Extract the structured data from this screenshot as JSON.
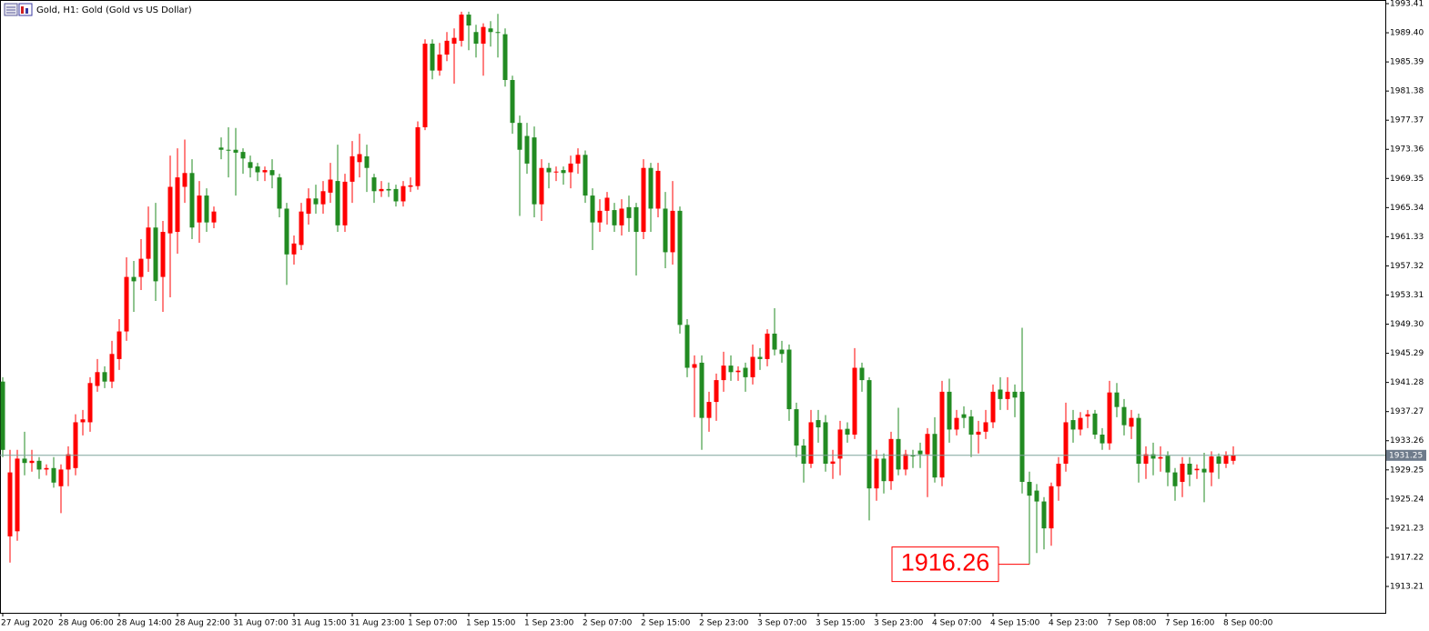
{
  "chart_data": {
    "type": "candlestick",
    "title": "Gold, H1:  Gold (Gold vs US Dollar)",
    "categories": [
      "27 Aug 2020",
      null,
      null,
      null,
      null,
      null,
      null,
      null,
      "28 Aug 06:00",
      null,
      null,
      null,
      null,
      null,
      null,
      null,
      "28 Aug 14:00",
      null,
      null,
      null,
      null,
      null,
      null,
      null,
      "28 Aug 22:00",
      null,
      null,
      null,
      null,
      null,
      null,
      null,
      "31 Aug 07:00",
      null,
      null,
      null,
      null,
      null,
      null,
      null,
      "31 Aug 15:00",
      null,
      null,
      null,
      null,
      null,
      null,
      null,
      "31 Aug 23:00",
      null,
      null,
      null,
      null,
      null,
      null,
      null,
      "1 Sep 07:00",
      null,
      null,
      null,
      null,
      null,
      null,
      null,
      "1 Sep 15:00",
      null,
      null,
      null,
      null,
      null,
      null,
      null,
      "1 Sep 23:00",
      null,
      null,
      null,
      null,
      null,
      null,
      null,
      "2 Sep 07:00",
      null,
      null,
      null,
      null,
      null,
      null,
      null,
      "2 Sep 15:00",
      null,
      null,
      null,
      null,
      null,
      null,
      null,
      "2 Sep 23:00",
      null,
      null,
      null,
      null,
      null,
      null,
      null,
      "3 Sep 07:00",
      null,
      null,
      null,
      null,
      null,
      null,
      null,
      "3 Sep 15:00",
      null,
      null,
      null,
      null,
      null,
      null,
      null,
      "3 Sep 23:00",
      null,
      null,
      null,
      null,
      null,
      null,
      null,
      "4 Sep 07:00",
      null,
      null,
      null,
      null,
      null,
      null,
      null,
      "4 Sep 15:00",
      null,
      null,
      null,
      null,
      null,
      null,
      null,
      "4 Sep 23:00",
      null,
      null,
      null,
      null,
      null,
      null,
      null,
      "7 Sep 08:00",
      null,
      null,
      null,
      null,
      null,
      null,
      null,
      "7 Sep 16:00",
      null,
      null,
      null,
      null,
      null,
      null,
      null,
      "8 Sep 00:00",
      null
    ],
    "open": [
      1941.4,
      1920.1,
      1920.8,
      1930.8,
      1930.2,
      1930.5,
      1929.3,
      1929.5,
      1927.0,
      1929.3,
      1929.5,
      1935.8,
      1935.8,
      1940.8,
      1942.7,
      1941.4,
      1944.5,
      1948.3,
      1955.8,
      1955.8,
      1958.3,
      1962.6,
      1955.8,
      1961.8,
      1962,
      1968.2,
      1970.1,
      1963.3,
      1967,
      1963.3,
      1973.6,
      1973.3,
      1973.3,
      1973,
      1971.6,
      1971,
      1970.2,
      1970.5,
      1969.5,
      1965.2,
      1958.9,
      1960.2,
      1964.5,
      1966.6,
      1965.8,
      1967.4,
      1969,
      1962.9,
      1968.9,
      1971.6,
      1972.4,
      1969.5,
      1967.6,
      1967.9,
      1967.9,
      1966.2,
      1968.2,
      1968.3,
      1976.4,
      1987.9,
      1984.2,
      1986.4,
      1987.9,
      1988.3,
      1991.9,
      1989.5,
      1987.9,
      1990,
      1989.5,
      1989.2,
      1982.9,
      1977,
      1975.2,
      1975,
      1965.8,
      1970.8,
      1970.2,
      1970.5,
      1970.2,
      1971.4,
      1972.6,
      1967,
      1963.3,
      1964.9,
      1965,
      1962.9,
      1965.4,
      1965.4,
      1962,
      1970.8,
      1965.2,
      1965.2,
      1959.2,
      1964.9,
      1949.2,
      1943.3,
      1944,
      1936.4,
      1938.6,
      1941.6,
      1943.6,
      1942.7,
      1943.3,
      1942,
      1944.8,
      1944.5,
      1948,
      1945.8,
      1945.8,
      1937.6,
      1932.6,
      1930.1,
      1936.1,
      1935.8,
      1930.1,
      1930.8,
      1934.9,
      1934.1,
      1943.3,
      1941.6,
      1926.7,
      1930.8,
      1927.7,
      1933.5,
      1929.3,
      1931.3,
      1931.9,
      1931.4,
      1934.2,
      1928.2,
      1940,
      1934.8,
      1936.9,
      1936.6,
      1934.1,
      1934.5,
      1935.8,
      1940.3,
      1939,
      1940,
      1940,
      1927.6,
      1926.4,
      1924.9,
      1921.2,
      1927,
      1930.1,
      1936.1,
      1934.8,
      1936.6,
      1937,
      1934.1,
      1932.9,
      1939.9,
      1937.9,
      1935.2,
      1936.4,
      1930.1,
      1931.4,
      1930.8,
      1931.2,
      1928.9,
      1927.6,
      1930.1,
      1929.2,
      1929.4,
      1928.9,
      1931.1,
      1930.1,
      1930.5
    ],
    "high": [
      1942,
      1932,
      1932,
      1934.5,
      1932,
      1931,
      1930,
      1931,
      1930,
      1932.5,
      1936.9,
      1937.5,
      1942,
      1944.5,
      1943.5,
      1947,
      1950,
      1958.5,
      1958,
      1961,
      1965.5,
      1966,
      1963.5,
      1972.5,
      1973.5,
      1974.7,
      1972,
      1969,
      1968,
      1965.5,
      1975,
      1976.4,
      1976.3,
      1973.5,
      1972.5,
      1971.5,
      1971,
      1972,
      1970,
      1966,
      1961.5,
      1966,
      1968,
      1968.5,
      1969,
      1971.5,
      1974,
      1970,
      1974.5,
      1975.5,
      1974,
      1970,
      1969,
      1968.8,
      1968.5,
      1969,
      1969.5,
      1977.2,
      1988.5,
      1988.5,
      1988,
      1989.5,
      1990,
      1992.3,
      1992.3,
      1990.5,
      1990.7,
      1991,
      1992,
      1990,
      1983.5,
      1978,
      1977,
      1976.5,
      1972,
      1971.5,
      1971,
      1971,
      1972.5,
      1973.5,
      1973.2,
      1968,
      1966.5,
      1967.5,
      1966,
      1966.5,
      1967,
      1966,
      1972,
      1971.5,
      1971.5,
      1967.5,
      1969,
      1965.5,
      1950,
      1945,
      1945,
      1940,
      1942.5,
      1945.5,
      1945,
      1943.5,
      1944,
      1946.5,
      1946,
      1948.6,
      1951.5,
      1947,
      1946.5,
      1938.5,
      1933.5,
      1937.5,
      1937.5,
      1936.8,
      1932,
      1936,
      1935.8,
      1946,
      1944,
      1942,
      1932,
      1931.5,
      1934.5,
      1937.8,
      1932,
      1932,
      1933,
      1935,
      1936.5,
      1941.5,
      1941.8,
      1937.5,
      1938,
      1937.5,
      1936,
      1937.5,
      1941,
      1942,
      1942,
      1941,
      1948.8,
      1929,
      1927.3,
      1925.5,
      1927.5,
      1931,
      1938.5,
      1937.5,
      1937.2,
      1937.5,
      1937.5,
      1935,
      1941.5,
      1941.2,
      1939,
      1937.5,
      1937,
      1932.5,
      1933,
      1932.5,
      1931.8,
      1929.5,
      1931,
      1931,
      1930,
      1931.6,
      1931.8,
      1931.5,
      1931.8,
      1932.5
    ],
    "low": [
      1931,
      1916.5,
      1919.5,
      1928.5,
      1929,
      1928,
      1928.5,
      1926.8,
      1923.3,
      1927,
      1928.5,
      1934,
      1934.5,
      1940,
      1940.5,
      1940.5,
      1943,
      1947,
      1951,
      1954,
      1956.5,
      1952.5,
      1951,
      1953,
      1959,
      1966,
      1961,
      1960.5,
      1962,
      1962.5,
      1972,
      1969.5,
      1967,
      1970,
      1969.5,
      1969,
      1969,
      1968,
      1964,
      1954.7,
      1957.5,
      1959.5,
      1963,
      1964.5,
      1964.5,
      1966,
      1962,
      1962,
      1966,
      1969.5,
      1967.5,
      1966,
      1966.8,
      1966.8,
      1965.5,
      1965.5,
      1967.5,
      1967.8,
      1976,
      1983,
      1983.5,
      1985.5,
      1982.4,
      1987.5,
      1987,
      1986,
      1983.5,
      1987.5,
      1986,
      1982,
      1975.5,
      1964.2,
      1970,
      1964,
      1963.5,
      1968,
      1969,
      1968.5,
      1968,
      1970,
      1966,
      1959.5,
      1962,
      1963,
      1962,
      1961.5,
      1962,
      1956,
      1961,
      1962,
      1964,
      1957,
      1957.5,
      1948,
      1942,
      1936.5,
      1932,
      1934.5,
      1936,
      1940,
      1941.5,
      1941.5,
      1940,
      1941,
      1943,
      1943.5,
      1945,
      1944,
      1936,
      1931,
      1927.5,
      1929.5,
      1933,
      1929,
      1928,
      1928.5,
      1933,
      1933.5,
      1940,
      1922.3,
      1925,
      1926,
      1926.5,
      1928.5,
      1928.5,
      1929.5,
      1929.5,
      1925.5,
      1927.5,
      1927,
      1933,
      1934,
      1935,
      1931,
      1931.5,
      1933.5,
      1935,
      1937.5,
      1937.5,
      1936.5,
      1926,
      1916.26,
      1917.8,
      1918.3,
      1918.8,
      1925,
      1929,
      1933,
      1934,
      1935,
      1933.5,
      1932,
      1932,
      1936.5,
      1934,
      1933.5,
      1927.5,
      1928,
      1928.5,
      1929,
      1927,
      1925,
      1925.5,
      1927,
      1928,
      1924.8,
      1927,
      1928,
      1929.5,
      1930
    ],
    "close": [
      1932,
      1928.9,
      1930.8,
      1930.2,
      1930.5,
      1929.3,
      1929.5,
      1927.5,
      1929.3,
      1931.4,
      1935.8,
      1936.2,
      1941.2,
      1942.7,
      1941.4,
      1945.2,
      1948.3,
      1955.8,
      1955.2,
      1958.3,
      1962.6,
      1955.2,
      1962,
      1968.2,
      1969.5,
      1970.1,
      1962.6,
      1967,
      1963.3,
      1964.8,
      1973.3,
      1973.2,
      1972.9,
      1972.1,
      1970.8,
      1970.2,
      1970.5,
      1969.8,
      1965.2,
      1958.9,
      1960.4,
      1964.8,
      1966.6,
      1965.8,
      1967.6,
      1969.2,
      1962.9,
      1968.9,
      1972.4,
      1972.7,
      1970.8,
      1967.6,
      1967.9,
      1967.7,
      1966.2,
      1968.3,
      1968.4,
      1976.4,
      1987.9,
      1984.2,
      1986.4,
      1988.3,
      1988.7,
      1991.9,
      1990.4,
      1987.9,
      1990.2,
      1989.5,
      1989.4,
      1982.9,
      1977,
      1973.3,
      1971.4,
      1965.8,
      1970.8,
      1970.2,
      1970.3,
      1970.1,
      1971.4,
      1972.6,
      1967,
      1963.3,
      1964.9,
      1966.7,
      1962.9,
      1965.2,
      1963.9,
      1962,
      1970.8,
      1965.2,
      1970.4,
      1959.2,
      1964.9,
      1949.2,
      1943.3,
      1943.8,
      1936.4,
      1938.6,
      1941.6,
      1943.6,
      1942.7,
      1942.9,
      1942,
      1944.8,
      1944.5,
      1948,
      1945.8,
      1945.2,
      1937.6,
      1932.6,
      1930.1,
      1935.8,
      1935.1,
      1930.1,
      1930.4,
      1934.8,
      1934.1,
      1943.3,
      1941.6,
      1926.7,
      1930.8,
      1927.7,
      1933.5,
      1929.3,
      1931.4,
      1931.1,
      1931.4,
      1934.2,
      1928.2,
      1940,
      1934.8,
      1936.4,
      1936.4,
      1934.1,
      1934.5,
      1935.8,
      1940,
      1939,
      1940,
      1939.2,
      1927.6,
      1925.7,
      1924.9,
      1921.2,
      1927,
      1930.1,
      1935.8,
      1934.8,
      1936.4,
      1936.9,
      1934.1,
      1932.9,
      1939.9,
      1937.9,
      1935.4,
      1936.4,
      1930.1,
      1931.4,
      1930.8,
      1931,
      1928.9,
      1927,
      1930.1,
      1928.6,
      1929.4,
      1928.9,
      1931.1,
      1930.1,
      1931.3,
      1931.25
    ],
    "up_color": "#ff0000",
    "down_color": "#228b22",
    "ylim": [
      1909.58,
      1993.91
    ],
    "yticks": [
      1993.41,
      {
        "value": 1989.4,
        "label": "1989.40"
      },
      1985.39,
      1981.38,
      1977.37,
      1973.36,
      1969.35,
      1965.34,
      1961.33,
      1957.32,
      1953.31,
      {
        "value": 1949.3,
        "label": "1949.30"
      },
      1945.29,
      1941.28,
      1937.27,
      1933.26,
      1929.25,
      1925.24,
      1921.23,
      1917.22,
      1913.21
    ]
  }
}
